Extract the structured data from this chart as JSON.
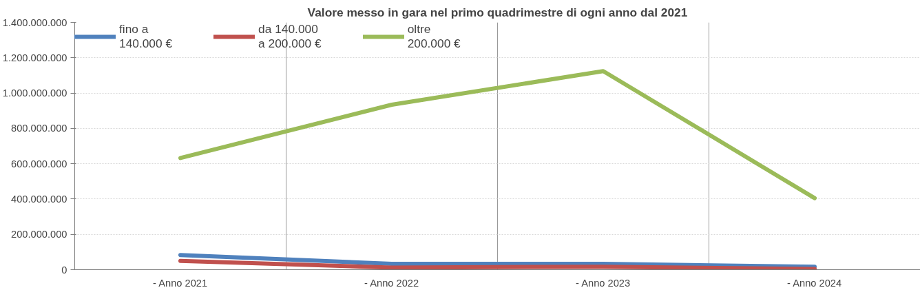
{
  "chart_data": {
    "type": "line",
    "title": "Valore messo in gara nel primo quadrimestre di ogni anno dal 2021",
    "categories": [
      "- Anno 2021",
      "- Anno 2022",
      "- Anno 2023",
      "- Anno 2024"
    ],
    "series": [
      {
        "name": "fino a\n140.000 €",
        "color": "#4f81bd",
        "values": [
          83000000,
          33000000,
          33000000,
          17000000
        ]
      },
      {
        "name": "da 140.000\na 200.000 €",
        "color": "#c0504d",
        "values": [
          50000000,
          12000000,
          17000000,
          4000000
        ]
      },
      {
        "name": "oltre\n200.000 €",
        "color": "#9bbb59",
        "values": [
          632000000,
          934000000,
          1124000000,
          405000000
        ]
      }
    ],
    "ylim": [
      0,
      1400000000
    ],
    "yticks": [
      0,
      {
        "value": 200000000,
        "label": "200.000.000"
      },
      {
        "value": 400000000,
        "label": "400.000.000"
      },
      {
        "value": 600000000,
        "label": "600.000.000"
      },
      {
        "value": 800000000,
        "label": "800.000.000"
      },
      {
        "value": 1000000000,
        "label": "1.000.000.000"
      },
      {
        "value": 1200000000,
        "label": "1.200.000.000"
      },
      {
        "value": 1400000000,
        "label": "1.400.000.000"
      }
    ],
    "grid": true,
    "legend": "top left",
    "marker": "none",
    "line_style": "solid"
  }
}
